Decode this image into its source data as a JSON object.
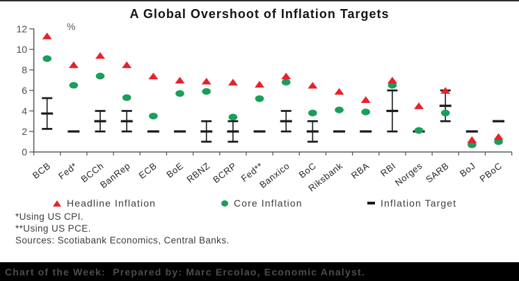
{
  "page": {
    "title": "A Global Overshoot of Inflation Targets",
    "footer": "Chart of the Week:  Prepared by: Marc Ercolao, Economic Analyst."
  },
  "legend": [
    {
      "label": "Headline Inflation",
      "marker": "triangle",
      "color": "#e8212b"
    },
    {
      "label": "Core Inflation",
      "marker": "circle",
      "color": "#1b9e5a"
    },
    {
      "label": "Inflation Target",
      "marker": "dash",
      "color": "#1a1a1a"
    }
  ],
  "notes": [
    "*Using US CPI.",
    "**Using US PCE.",
    "Sources: Scotiabank Economics, Central Banks."
  ],
  "chart_data": {
    "type": "scatter",
    "title": "A Global Overshoot of Inflation Targets",
    "unit_label": "%",
    "xlabel": "",
    "ylabel": "%",
    "ylim": [
      0,
      12
    ],
    "ytick_step": 2,
    "grid": false,
    "legend_position": "bottom",
    "categories": [
      "BCB",
      "Fed*",
      "BCCh",
      "BanRep",
      "ECB",
      "BoE",
      "RBNZ",
      "BCRP",
      "Fed**",
      "Banxico",
      "BoC",
      "Riksbank",
      "RBA",
      "RBI",
      "Norges",
      "SARB",
      "BoJ",
      "PBoC"
    ],
    "series": [
      {
        "name": "Headline Inflation",
        "marker": "triangle",
        "color": "#e8212b",
        "values": [
          11.3,
          8.5,
          9.4,
          8.5,
          7.4,
          7.0,
          6.9,
          6.8,
          6.6,
          7.4,
          6.5,
          5.9,
          5.1,
          7.0,
          4.5,
          6.0,
          1.2,
          1.5
        ]
      },
      {
        "name": "Core Inflation",
        "marker": "circle",
        "color": "#1b9e5a",
        "values": [
          9.1,
          6.5,
          7.4,
          5.3,
          3.5,
          5.7,
          5.9,
          3.4,
          5.2,
          6.8,
          3.8,
          4.1,
          3.9,
          6.5,
          2.1,
          3.8,
          0.7,
          1.0
        ]
      },
      {
        "name": "Inflation Target",
        "marker": "dash",
        "color": "#1a1a1a",
        "values": [
          3.75,
          2,
          3,
          3,
          2,
          2,
          2,
          2,
          2,
          3,
          2,
          2,
          2,
          4,
          2,
          4.5,
          2,
          3
        ],
        "ranges": [
          [
            2.25,
            5.25
          ],
          null,
          [
            2,
            4
          ],
          [
            2,
            4
          ],
          null,
          null,
          [
            1,
            3
          ],
          [
            1,
            3
          ],
          null,
          [
            2,
            4
          ],
          [
            1,
            3
          ],
          null,
          null,
          [
            2,
            6
          ],
          null,
          [
            3,
            6
          ],
          null,
          null
        ]
      }
    ]
  },
  "colors": {
    "headline": "#e8212b",
    "core": "#1b9e5a",
    "target": "#1a1a1a",
    "axis": "#595959",
    "y_tick_label": "#4d4d4d",
    "x_tick_label": "#262626",
    "footer_bg": "#000000",
    "footer_text": "#4d4d4d"
  }
}
